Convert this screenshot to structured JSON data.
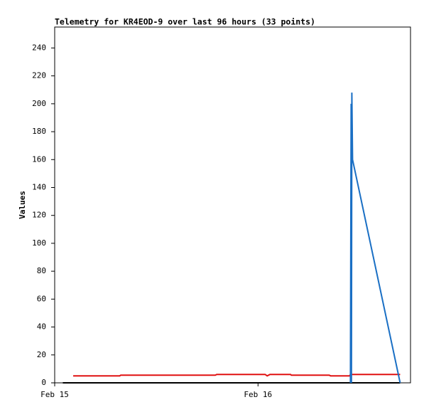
{
  "chart_data": {
    "type": "line",
    "title": "Telemetry for KR4EOD-9 over last 96 hours (33 points)",
    "y_label": "Values",
    "xlim": [
      0,
      1.75
    ],
    "xticks": [
      {
        "value": 0,
        "label": "Feb 15"
      },
      {
        "value": 1,
        "label": "Feb 16"
      }
    ],
    "ylim": [
      0,
      255
    ],
    "yticks": [
      0,
      20,
      40,
      60,
      80,
      100,
      120,
      140,
      160,
      180,
      200,
      220,
      240
    ],
    "series": [
      {
        "color": "#000000",
        "x": [
          0.04,
          1.699
        ],
        "values": [
          0,
          0
        ]
      },
      {
        "color": "#e01010",
        "x": [
          0.091,
          0.32,
          0.325,
          0.79,
          0.797,
          1.035,
          1.045,
          1.059,
          1.16,
          1.164,
          1.35,
          1.357,
          1.45,
          1.455,
          1.699
        ],
        "values": [
          5,
          5,
          5.5,
          5.5,
          6,
          6,
          5,
          6,
          6,
          5.5,
          5.5,
          5,
          5,
          6,
          6
        ]
      },
      {
        "color": "#1a6fc4",
        "x": [
          1.4545,
          1.455,
          1.458,
          1.4595,
          1.4615,
          1.465,
          1.699
        ],
        "values": [
          0,
          33,
          200,
          0,
          208,
          160,
          0
        ]
      }
    ]
  }
}
